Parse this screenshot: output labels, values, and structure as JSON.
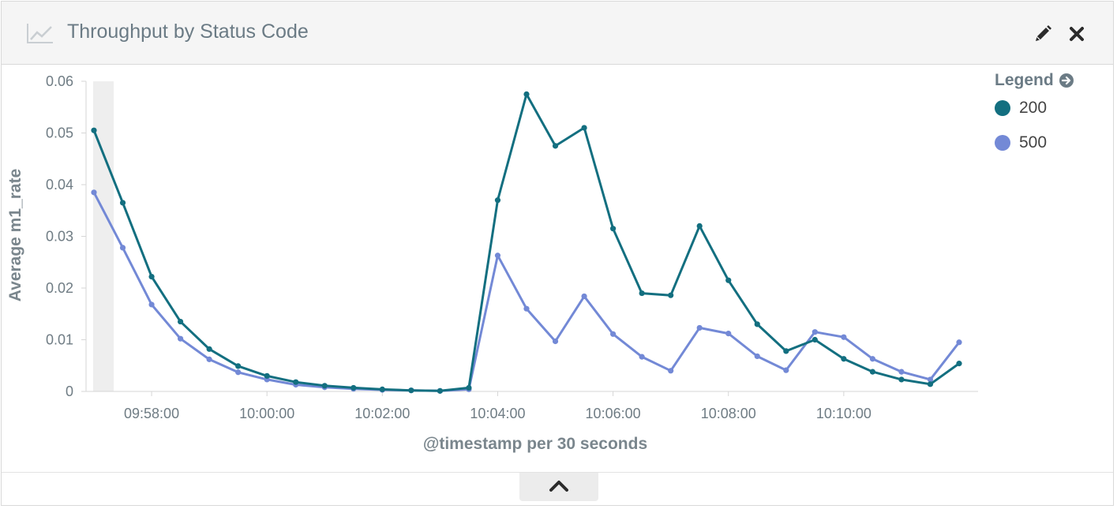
{
  "panel": {
    "title": "Throughput by Status Code",
    "icons": {
      "visualization": "line-chart-icon",
      "edit": "pencil-icon",
      "close": "close-icon",
      "collapse": "chevron-up-icon",
      "legend_toggle": "arrow-circle-right-icon"
    }
  },
  "legend": {
    "title": "Legend",
    "items": [
      {
        "label": "200",
        "color": "#136f80"
      },
      {
        "label": "500",
        "color": "#7389d6"
      }
    ]
  },
  "chart_data": {
    "type": "line",
    "ylabel": "Average m1_rate",
    "xlabel": "@timestamp per 30 seconds",
    "ylim": [
      0,
      0.06
    ],
    "yticks": [
      "0",
      "0.01",
      "0.02",
      "0.03",
      "0.04",
      "0.05",
      "0.06"
    ],
    "xtick_labels": [
      "09:58:00",
      "10:00:00",
      "10:02:00",
      "10:04:00",
      "10:06:00",
      "10:08:00",
      "10:10:00"
    ],
    "x": [
      "09:57:00",
      "09:57:30",
      "09:58:00",
      "09:58:30",
      "09:59:00",
      "09:59:30",
      "10:00:00",
      "10:00:30",
      "10:01:00",
      "10:01:30",
      "10:02:00",
      "10:02:30",
      "10:03:00",
      "10:03:30",
      "10:04:00",
      "10:04:30",
      "10:05:00",
      "10:05:30",
      "10:06:00",
      "10:06:30",
      "10:07:00",
      "10:07:30",
      "10:08:00",
      "10:08:30",
      "10:09:00",
      "10:09:30",
      "10:10:00",
      "10:10:30",
      "10:11:00",
      "10:11:30",
      "10:12:00"
    ],
    "series": [
      {
        "name": "200",
        "color": "#136f80",
        "values": [
          0.0505,
          0.0365,
          0.0222,
          0.0135,
          0.0082,
          0.0049,
          0.003,
          0.0018,
          0.0011,
          0.0007,
          0.0004,
          0.0002,
          0.0001,
          0.0007,
          0.037,
          0.0575,
          0.0475,
          0.051,
          0.0315,
          0.019,
          0.0186,
          0.032,
          0.0215,
          0.013,
          0.0078,
          0.01,
          0.0063,
          0.0038,
          0.0023,
          0.0014,
          0.0054
        ]
      },
      {
        "name": "500",
        "color": "#7389d6",
        "values": [
          0.0385,
          0.0278,
          0.0168,
          0.0102,
          0.0062,
          0.0037,
          0.0023,
          0.0013,
          0.0008,
          0.0005,
          0.0003,
          0.0002,
          0.0001,
          0.0004,
          0.0263,
          0.016,
          0.0097,
          0.0184,
          0.0111,
          0.0067,
          0.004,
          0.0123,
          0.0112,
          0.0068,
          0.0041,
          0.0115,
          0.0105,
          0.0063,
          0.0038,
          0.0023,
          0.0095
        ]
      }
    ],
    "grid": false,
    "legend_position": "right"
  }
}
